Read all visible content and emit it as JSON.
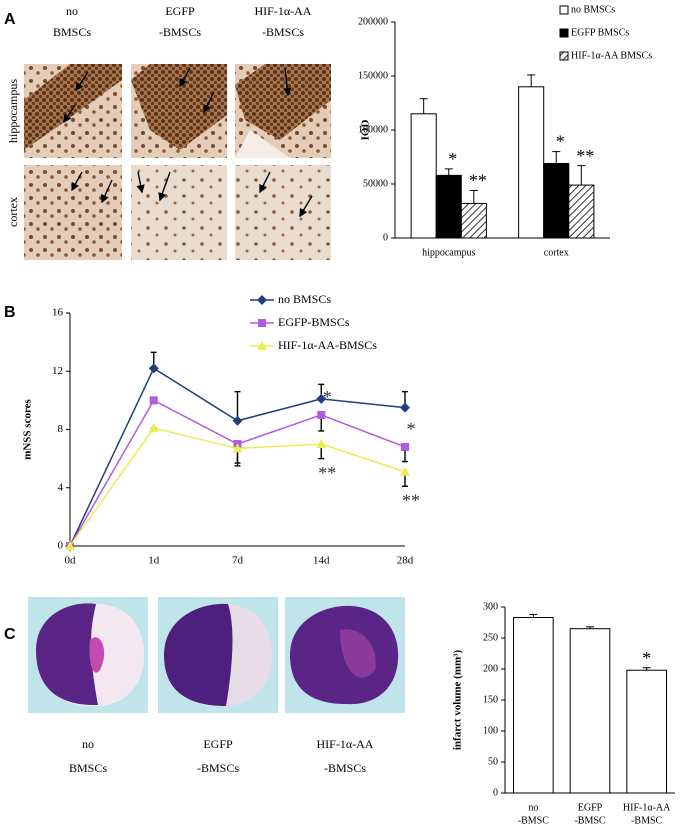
{
  "panel_a": {
    "label": "A",
    "columns": [
      [
        "no",
        "BMSCs"
      ],
      [
        "EGFP",
        "-BMSCs"
      ],
      [
        "HIF-1α-AA",
        "-BMSCs"
      ]
    ],
    "rows": [
      "hippocampus",
      "cortex"
    ]
  },
  "panel_b": {
    "label": "B"
  },
  "panel_c": {
    "label": "C",
    "columns": [
      [
        "no",
        "BMSCs"
      ],
      [
        "EGFP",
        "-BMSCs"
      ],
      [
        "HIF-1α-AA",
        "-BMSCs"
      ]
    ]
  },
  "chart_data": [
    {
      "type": "bar",
      "ylabel": "IOD",
      "categories": [
        "hippocampus",
        "cortex"
      ],
      "ylim": [
        0,
        200000
      ],
      "yticks": [
        0,
        50000,
        100000,
        150000,
        200000
      ],
      "legend": "top right",
      "series": [
        {
          "name": "no BMSCs",
          "color": "#ffffff",
          "values": [
            115000,
            140000
          ],
          "errors": [
            14000,
            11000
          ]
        },
        {
          "name": "EGFP BMSCs",
          "color": "#000000",
          "values": [
            58000,
            69000
          ],
          "errors": [
            6000,
            11000
          ],
          "significance": [
            "*",
            "*"
          ]
        },
        {
          "name": "HIF-1α-AA BMSCs",
          "color": "#ffffff",
          "pattern": "hatched",
          "values": [
            32000,
            49000
          ],
          "errors": [
            12000,
            18000
          ],
          "significance": [
            "**",
            "**"
          ]
        }
      ]
    },
    {
      "type": "line",
      "ylabel": "mNSS scores",
      "categories": [
        "0d",
        "1d",
        "7d",
        "14d",
        "28d"
      ],
      "ylim": [
        0,
        16
      ],
      "yticks": [
        0,
        4,
        8,
        12,
        16
      ],
      "legend": "top center",
      "series": [
        {
          "name": "no BMSCs",
          "color": "#1f3f7f",
          "marker": "diamond",
          "error_direction": "up",
          "values": [
            0,
            12.2,
            8.6,
            10.1,
            9.5
          ],
          "errors": [
            0,
            1.1,
            2,
            1,
            1.1
          ]
        },
        {
          "name": "EGFP-BMSCs",
          "color": "#b05be0",
          "marker": "square",
          "error_direction": "down",
          "values": [
            0,
            10,
            7,
            9,
            6.8
          ],
          "errors": [
            0,
            0,
            1.3,
            1.1,
            1
          ],
          "significance": [
            null,
            null,
            null,
            "*",
            "*"
          ]
        },
        {
          "name": "HIF-1α-AA-BMSCs",
          "color": "#ecec55",
          "marker": "triangle",
          "error_direction": "down",
          "values": [
            0,
            8.1,
            6.7,
            7,
            5.1
          ],
          "errors": [
            0,
            0,
            1.2,
            1,
            1
          ],
          "significance": [
            null,
            null,
            null,
            "**",
            "**"
          ]
        }
      ]
    },
    {
      "type": "bar",
      "ylabel": "infarct volume (mm³)",
      "categories": [
        [
          "no",
          "-BMSC"
        ],
        [
          "EGFP",
          "-BMSC"
        ],
        [
          "HIF-1α-AA",
          "-BMSC"
        ]
      ],
      "ylim": [
        0,
        300
      ],
      "yticks": [
        0,
        50,
        100,
        150,
        200,
        250,
        300
      ],
      "series": [
        {
          "color": "#ffffff",
          "values": [
            283,
            265,
            198
          ],
          "errors": [
            5,
            3,
            4
          ],
          "significance": [
            null,
            null,
            "*"
          ]
        }
      ]
    }
  ]
}
